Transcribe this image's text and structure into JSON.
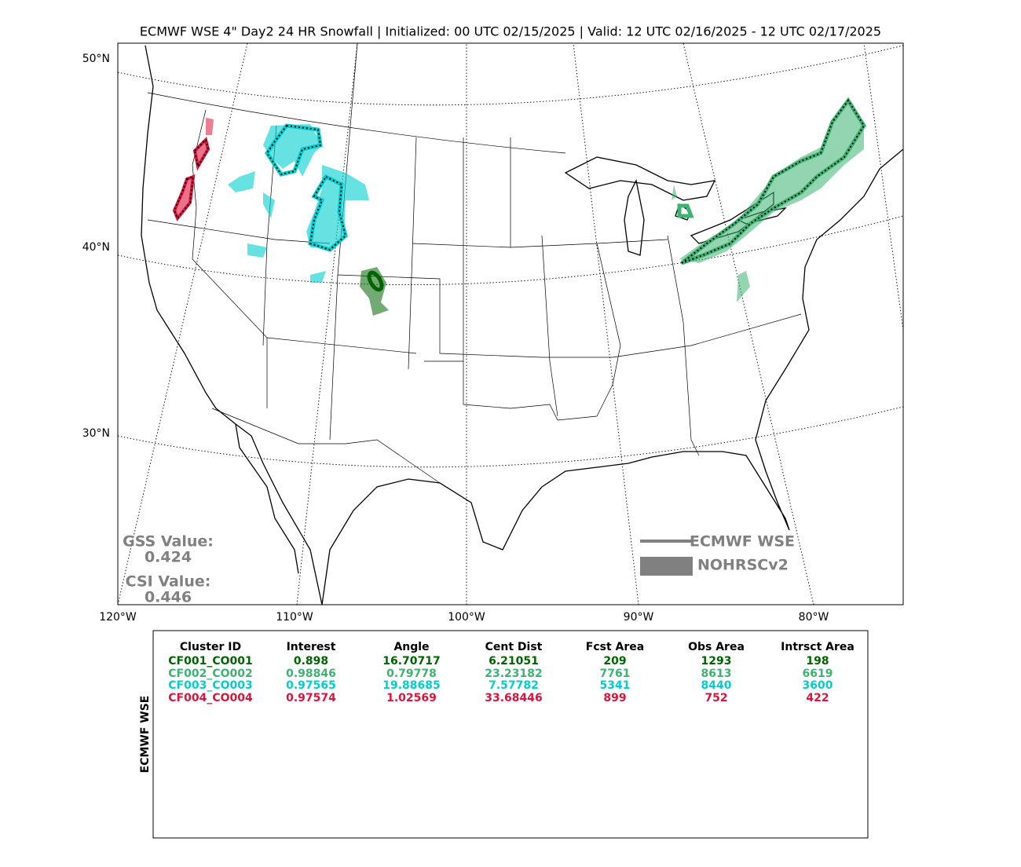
{
  "title": "ECMWF WSE 4\" Day2 24 HR Snowfall | Initialized: 00 UTC 02/15/2025 | Valid: 12 UTC 02/16/2025 - 12 UTC 02/17/2025",
  "map": {
    "lat_labels": [
      "50°N",
      "40°N",
      "30°N"
    ],
    "lon_labels": [
      "120°W",
      "110°W",
      "100°W",
      "90°W",
      "80°W"
    ]
  },
  "scores": {
    "gss_label": "GSS Value:",
    "gss_value": "0.424",
    "csi_label": "CSI Value:",
    "csi_value": "0.446"
  },
  "legend": {
    "forecast": "ECMWF WSE",
    "observed": "NOHRSCv2"
  },
  "table": {
    "side_label": "ECMWF WSE",
    "columns": [
      "Cluster ID",
      "Interest",
      "Angle",
      "Cent Dist",
      "Fcst Area",
      "Obs Area",
      "Intrsct Area"
    ],
    "rows": [
      {
        "color": "#006400",
        "cells": [
          "CF001_CO001",
          "0.898",
          "16.70717",
          "6.21051",
          "209",
          "1293",
          "198"
        ]
      },
      {
        "color": "#3cb371",
        "cells": [
          "CF002_CO002",
          "0.98846",
          "0.79778",
          "23.23182",
          "7761",
          "8613",
          "6619"
        ]
      },
      {
        "color": "#00ced1",
        "cells": [
          "CF003_CO003",
          "0.97565",
          "19.88685",
          "7.57782",
          "5341",
          "8440",
          "3600"
        ]
      },
      {
        "color": "#dc143c",
        "cells": [
          "CF004_CO004",
          "0.97574",
          "1.02569",
          "33.68446",
          "899",
          "752",
          "422"
        ]
      }
    ]
  }
}
